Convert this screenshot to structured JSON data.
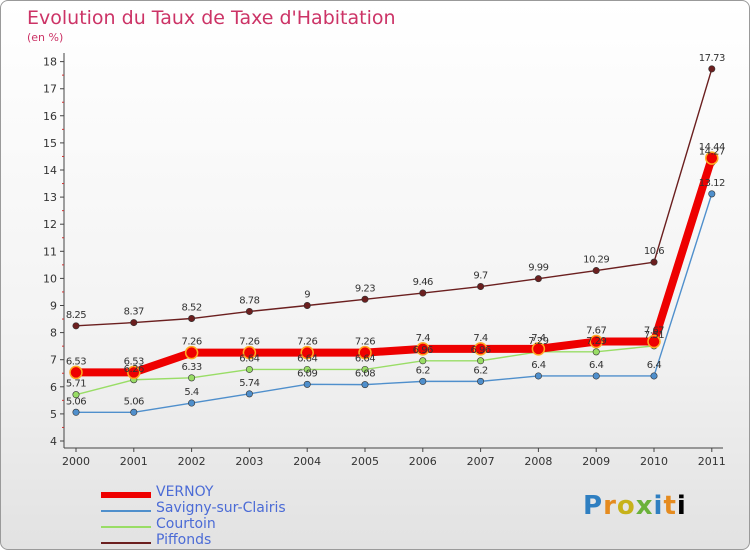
{
  "chart_data": {
    "type": "line",
    "title": "Evolution du Taux de Taxe d'Habitation",
    "ylabel": "(en %)",
    "xlabel": "",
    "ylim": [
      4,
      18
    ],
    "yticks": [
      "4",
      "5",
      "6",
      "7",
      "8",
      "9",
      "10",
      "11",
      "12",
      "13",
      "14",
      "15",
      "16",
      "17",
      "18"
    ],
    "categories": [
      "2000",
      "2001",
      "2002",
      "2003",
      "2004",
      "2005",
      "2006",
      "2007",
      "2008",
      "2009",
      "2010",
      "2011"
    ],
    "series": [
      {
        "name": "Piffonds",
        "color": "#6b1f1f",
        "values": [
          8.25,
          8.37,
          8.52,
          8.78,
          9,
          9.23,
          9.46,
          9.7,
          9.99,
          10.29,
          10.6,
          17.73
        ],
        "labels": [
          "8.25",
          "8.37",
          "8.52",
          "8.78",
          "9",
          "9.23",
          "9.46",
          "9.7",
          "9.99",
          "10.29",
          "10.6",
          "17.73"
        ]
      },
      {
        "name": "Courtoin",
        "color": "#99dd66",
        "values": [
          5.71,
          6.26,
          6.33,
          6.64,
          6.64,
          6.64,
          6.96,
          6.96,
          7.29,
          7.29,
          7.51,
          14.27
        ],
        "labels": [
          "5.71",
          "6.26",
          "6.33",
          "6.64",
          "6.64",
          "6.64",
          "6.96",
          "6.96",
          "7.29",
          "7.29",
          "7.51",
          "14.27"
        ]
      },
      {
        "name": "Savigny-sur-Clairis",
        "color": "#4f8fcc",
        "values": [
          5.06,
          5.06,
          5.4,
          5.74,
          6.09,
          6.08,
          6.2,
          6.2,
          6.4,
          6.4,
          6.4,
          13.12
        ],
        "labels": [
          "5.06",
          "5.06",
          "5.4",
          "5.74",
          "6.09",
          "6.08",
          "6.2",
          "6.2",
          "6.4",
          "6.4",
          "6.4",
          "13.12"
        ]
      },
      {
        "name": "VERNOY",
        "color": "#ee0000",
        "values": [
          6.53,
          6.53,
          7.26,
          7.26,
          7.26,
          7.26,
          7.4,
          7.4,
          7.4,
          7.67,
          7.67,
          14.44
        ],
        "labels": [
          "6.53",
          "6.53",
          "7.26",
          "7.26",
          "7.26",
          "7.26",
          "7.4",
          "7.4",
          "7.4",
          "7.67",
          "7.67",
          "14.44"
        ]
      }
    ],
    "legend": [
      "VERNOY",
      "Savigny-sur-Clairis",
      "Courtoin",
      "Piffonds"
    ],
    "legend_position": "bottom-left",
    "grid": false
  },
  "brand": {
    "letters": [
      "P",
      "r",
      "o",
      "x",
      "i",
      "t",
      "i"
    ]
  }
}
